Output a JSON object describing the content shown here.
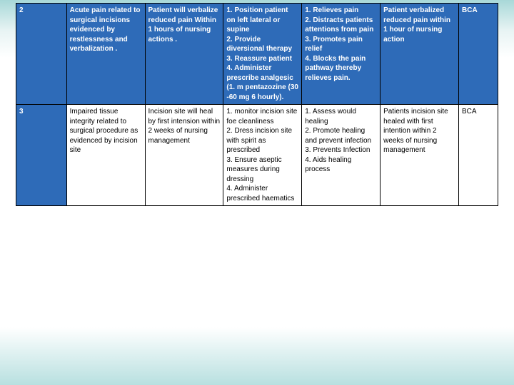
{
  "table": {
    "background_gradient_top": "#a8d8d8",
    "background_gradient_bottom": "#b8e0e0",
    "header_bg": "#2e6bb8",
    "header_fg": "#ffffff",
    "body_bg": "#ffffff",
    "body_fg": "#000000",
    "border_color": "#000000",
    "font_size": 10,
    "columns": [
      "id",
      "diagnosis",
      "outcome",
      "intervention",
      "rationale",
      "evaluation",
      "abbr"
    ],
    "col_widths_pct": [
      9,
      14,
      14,
      14,
      14,
      14,
      7
    ],
    "rows": [
      {
        "id": "2",
        "diagnosis": "Acute pain related to surgical incisions evidenced by restlessness and verbalization .",
        "outcome": "Patient will verbalize reduced pain Within 1 hours of nursing actions .",
        "intervention": "1. Position patient on left lateral or supine\n2. Provide diversional therapy\n3. Reassure patient\n4. Administer prescribe analgesic (1. m pentazozine (30 -60 mg 6 hourly).",
        "rationale": "1. Relieves pain\n2. Distracts patients attentions from pain\n3. Promotes pain relief\n4. Blocks the pain pathway thereby relieves pain.",
        "evaluation": " Patient verbalized reduced pain within 1 hour of nursing action",
        "abbr": "BCA",
        "header_style": true
      },
      {
        "id": "3",
        "diagnosis": "Impaired tissue integrity related to surgical procedure as evidenced by incision site",
        "outcome": "Incision site will heal by first intension within 2 weeks of nursing management",
        "intervention": "1. monitor incision site foe cleanliness\n2. Dress incision site with spirit as prescribed\n3. Ensure aseptic measures during dressing\n4. Administer prescribed haematics",
        "rationale": "1. Assess would healing\n2. Promote healing and prevent infection\n3. Prevents Infection\n4. Aids healing process",
        "evaluation": "Patients incision site healed with first intention within 2 weeks of nursing management",
        "abbr": "BCA",
        "header_style": false
      }
    ]
  }
}
